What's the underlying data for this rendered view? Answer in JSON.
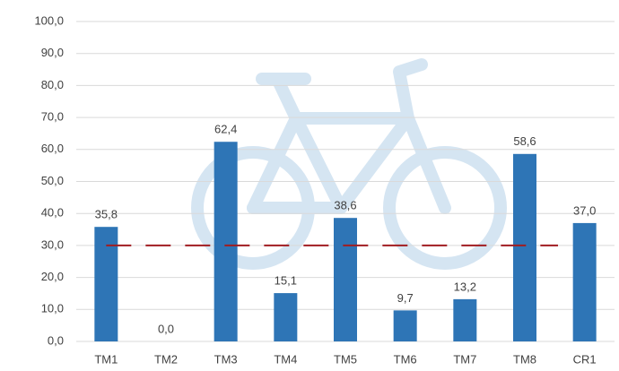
{
  "chart_data": {
    "type": "bar",
    "categories": [
      "TM1",
      "TM2",
      "TM3",
      "TM4",
      "TM5",
      "TM6",
      "TM7",
      "TM8",
      "CR1"
    ],
    "values": [
      35.8,
      0.0,
      62.4,
      15.1,
      38.6,
      9.7,
      13.2,
      58.6,
      37.0
    ],
    "value_labels": [
      "35,8",
      "0,0",
      "62,4",
      "15,1",
      "38,6",
      "9,7",
      "13,2",
      "58,6",
      "37,0"
    ],
    "color": "#2e75b6",
    "ylim": [
      0,
      100
    ],
    "yticks": [
      {
        "value": 0,
        "label": "0,0"
      },
      {
        "value": 10,
        "label": "10,0"
      },
      {
        "value": 20,
        "label": "20,0"
      },
      {
        "value": 30,
        "label": "30,0"
      },
      {
        "value": 40,
        "label": "40,0"
      },
      {
        "value": 50,
        "label": "50,0"
      },
      {
        "value": 60,
        "label": "60,0"
      },
      {
        "value": 70,
        "label": "70,0"
      },
      {
        "value": 80,
        "label": "80,0"
      },
      {
        "value": 90,
        "label": "90,0"
      },
      {
        "value": 100,
        "label": "100,0"
      }
    ],
    "grid": true,
    "reference_line": {
      "value": 30,
      "color": "#a11d21"
    }
  }
}
